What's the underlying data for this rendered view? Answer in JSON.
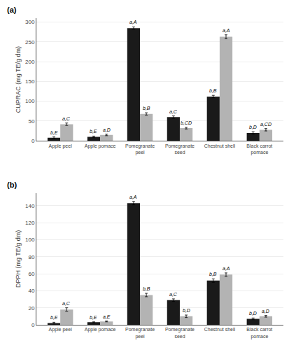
{
  "chart_data": [
    {
      "type": "bar",
      "title": "(a)",
      "categories": [
        "Apple peel",
        "Apple pomace",
        "Pomegranate\npeel",
        "Pomegranate\nseed",
        "Chestnut shell",
        "Black carrot\npomace"
      ],
      "series": [
        {
          "color": "#1a1a1a",
          "values": [
            8,
            10,
            285,
            60,
            112,
            20
          ],
          "error": [
            2,
            2,
            3,
            3,
            3,
            3
          ],
          "labels": [
            "b,E",
            "b,E",
            "a,A",
            "a,C",
            "b,B",
            "b,D"
          ]
        },
        {
          "color": "#b3b3b3",
          "values": [
            42,
            15,
            68,
            32,
            263,
            28
          ],
          "error": [
            3,
            2,
            3,
            2,
            5,
            3
          ],
          "labels": [
            "a,C",
            "a,D",
            "b,B",
            "b,CD",
            "a,A",
            "a,CD"
          ]
        }
      ],
      "ylabel": "CUPRAC (mg TE/g dm)",
      "ylim": [
        0,
        310
      ],
      "yticks": [
        0,
        50,
        100,
        150,
        200,
        250,
        300
      ],
      "grid": true
    },
    {
      "type": "bar",
      "title": "(b)",
      "categories": [
        "Apple peel",
        "Apple pomace",
        "Pomegranate\npeel",
        "Pomegranate\nseed",
        "Chestnut shell",
        "Black carrot\npomace"
      ],
      "series": [
        {
          "color": "#1a1a1a",
          "values": [
            2,
            3,
            143,
            29,
            52,
            7
          ],
          "error": [
            1,
            0.5,
            2,
            1.5,
            2,
            1
          ],
          "labels": [
            "b,E",
            "b,E",
            "a,A",
            "a,C",
            "b,B",
            "b,D"
          ]
        },
        {
          "color": "#b3b3b3",
          "values": [
            18,
            4,
            35,
            10,
            59,
            10
          ],
          "error": [
            2,
            0.5,
            2,
            1.5,
            2,
            1
          ],
          "labels": [
            "a,C",
            "a,E",
            "b,B",
            "b,D",
            "a,A",
            "a,D"
          ]
        }
      ],
      "ylabel": "DPPH (mg TE/g dm)",
      "ylim": [
        0,
        155
      ],
      "yticks": [
        0,
        20,
        40,
        60,
        80,
        100,
        120,
        140
      ],
      "grid": true
    }
  ]
}
